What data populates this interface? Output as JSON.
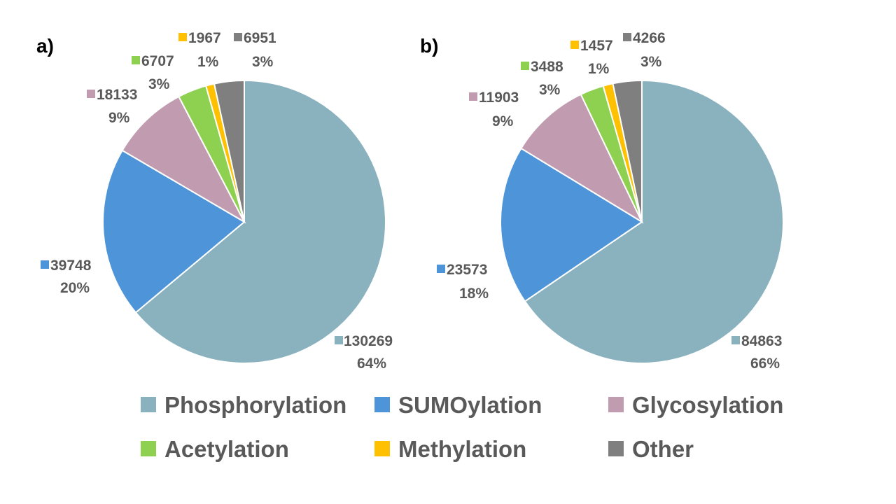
{
  "chart_data": [
    {
      "type": "pie",
      "panel": "a)",
      "categories": [
        "Phosphorylation",
        "SUMOylation",
        "Glycosylation",
        "Acetylation",
        "Methylation",
        "Other"
      ],
      "values": [
        130269,
        39748,
        18133,
        6707,
        1967,
        6951
      ],
      "percent_labels": [
        "64%",
        "20%",
        "9%",
        "3%",
        "1%",
        "3%"
      ],
      "value_labels": [
        "130269",
        "39748",
        "18133",
        "6707",
        "1967",
        "6951"
      ]
    },
    {
      "type": "pie",
      "panel": "b)",
      "categories": [
        "Phosphorylation",
        "SUMOylation",
        "Glycosylation",
        "Acetylation",
        "Methylation",
        "Other"
      ],
      "values": [
        84863,
        23573,
        11903,
        3488,
        1457,
        4266
      ],
      "percent_labels": [
        "66%",
        "18%",
        "9%",
        "3%",
        "1%",
        "3%"
      ],
      "value_labels": [
        "84863",
        "23573",
        "11903",
        "3488",
        "1457",
        "4266"
      ]
    }
  ],
  "legend": {
    "items": [
      {
        "label": "Phosphorylation",
        "color": "#89B1BE"
      },
      {
        "label": "SUMOylation",
        "color": "#4E94D8"
      },
      {
        "label": "Glycosylation",
        "color": "#C19CB0"
      },
      {
        "label": "Acetylation",
        "color": "#8ED050"
      },
      {
        "label": "Methylation",
        "color": "#FFC000"
      },
      {
        "label": "Other",
        "color": "#7F7F7F"
      }
    ]
  }
}
